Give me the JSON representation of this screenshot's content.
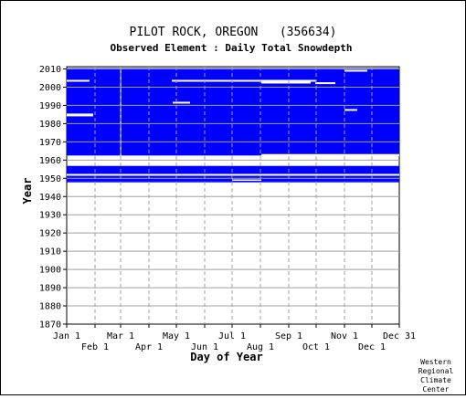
{
  "chart_data": {
    "type": "heatmap",
    "title": "PILOT ROCK, OREGON   (356634)",
    "subtitle": "Observed Element : Daily Total Snowdepth",
    "xlabel": "Day of Year",
    "ylabel": "Year",
    "ylim": [
      1870,
      2012
    ],
    "xlim": [
      1,
      365
    ],
    "y_ticks": [
      1870,
      1880,
      1890,
      1900,
      1910,
      1920,
      1930,
      1940,
      1950,
      1960,
      1970,
      1980,
      1990,
      2000,
      2010
    ],
    "x_ticks_upper": [
      {
        "label": "Jan 1",
        "day": 1
      },
      {
        "label": "Mar 1",
        "day": 60
      },
      {
        "label": "May 1",
        "day": 121
      },
      {
        "label": "Jul 1",
        "day": 182
      },
      {
        "label": "Sep 1",
        "day": 244
      },
      {
        "label": "Nov 1",
        "day": 305
      },
      {
        "label": "Dec 31",
        "day": 365
      }
    ],
    "x_ticks_lower": [
      {
        "label": "Feb 1",
        "day": 32
      },
      {
        "label": "Apr 1",
        "day": 91
      },
      {
        "label": "Jun 1",
        "day": 152
      },
      {
        "label": "Aug 1",
        "day": 213
      },
      {
        "label": "Oct 1",
        "day": 274
      },
      {
        "label": "Dec 1",
        "day": 335
      }
    ],
    "grid": true,
    "observed_color": "#0000ff",
    "observed_blocks": [
      {
        "year_start": 1947.8,
        "year_end": 1948.6,
        "day_start": 1,
        "day_end": 365
      },
      {
        "year_start": 1948.6,
        "year_end": 1949.4,
        "day_start": 1,
        "day_end": 182
      },
      {
        "year_start": 1948.6,
        "year_end": 1949.4,
        "day_start": 214,
        "day_end": 365
      },
      {
        "year_start": 1949.4,
        "year_end": 1951.4,
        "day_start": 1,
        "day_end": 365
      },
      {
        "year_start": 1952.4,
        "year_end": 1956.8,
        "day_start": 1,
        "day_end": 365
      },
      {
        "year_start": 1962.5,
        "year_end": 2010.5,
        "day_start": 1,
        "day_end": 365
      }
    ],
    "missing_segments": [
      {
        "year": 1985,
        "day_start": 1,
        "day_end": 30
      },
      {
        "year": 1984.5,
        "day_start": 1,
        "day_end": 30
      },
      {
        "year": 1991.5,
        "day_start": 117,
        "day_end": 136
      },
      {
        "year": 2002.5,
        "day_start": 214,
        "day_end": 268
      },
      {
        "year": 2003.5,
        "day_start": 116,
        "day_end": 274
      },
      {
        "year": 2003.5,
        "day_start": 1,
        "day_end": 26
      },
      {
        "year": 2002.2,
        "day_start": 273,
        "day_end": 295
      },
      {
        "year": 1987.5,
        "day_start": 305,
        "day_end": 319
      },
      {
        "year": 2009,
        "day_start": 305,
        "day_end": 330
      },
      {
        "year": 1962.8,
        "day_start": 214,
        "day_end": 365
      },
      {
        "year": 1951.9,
        "day_start": 1,
        "day_end": 45
      },
      {
        "year": 1951.9,
        "day_start": 46,
        "day_end": 60
      },
      {
        "year": 1951.9,
        "day_start": 125,
        "day_end": 365
      }
    ],
    "missing_vertical": [
      {
        "day": 60,
        "year_start": 1962.5,
        "year_end": 2010.5
      }
    ]
  },
  "credit": [
    "Western",
    "Regional",
    "Climate",
    "Center"
  ]
}
